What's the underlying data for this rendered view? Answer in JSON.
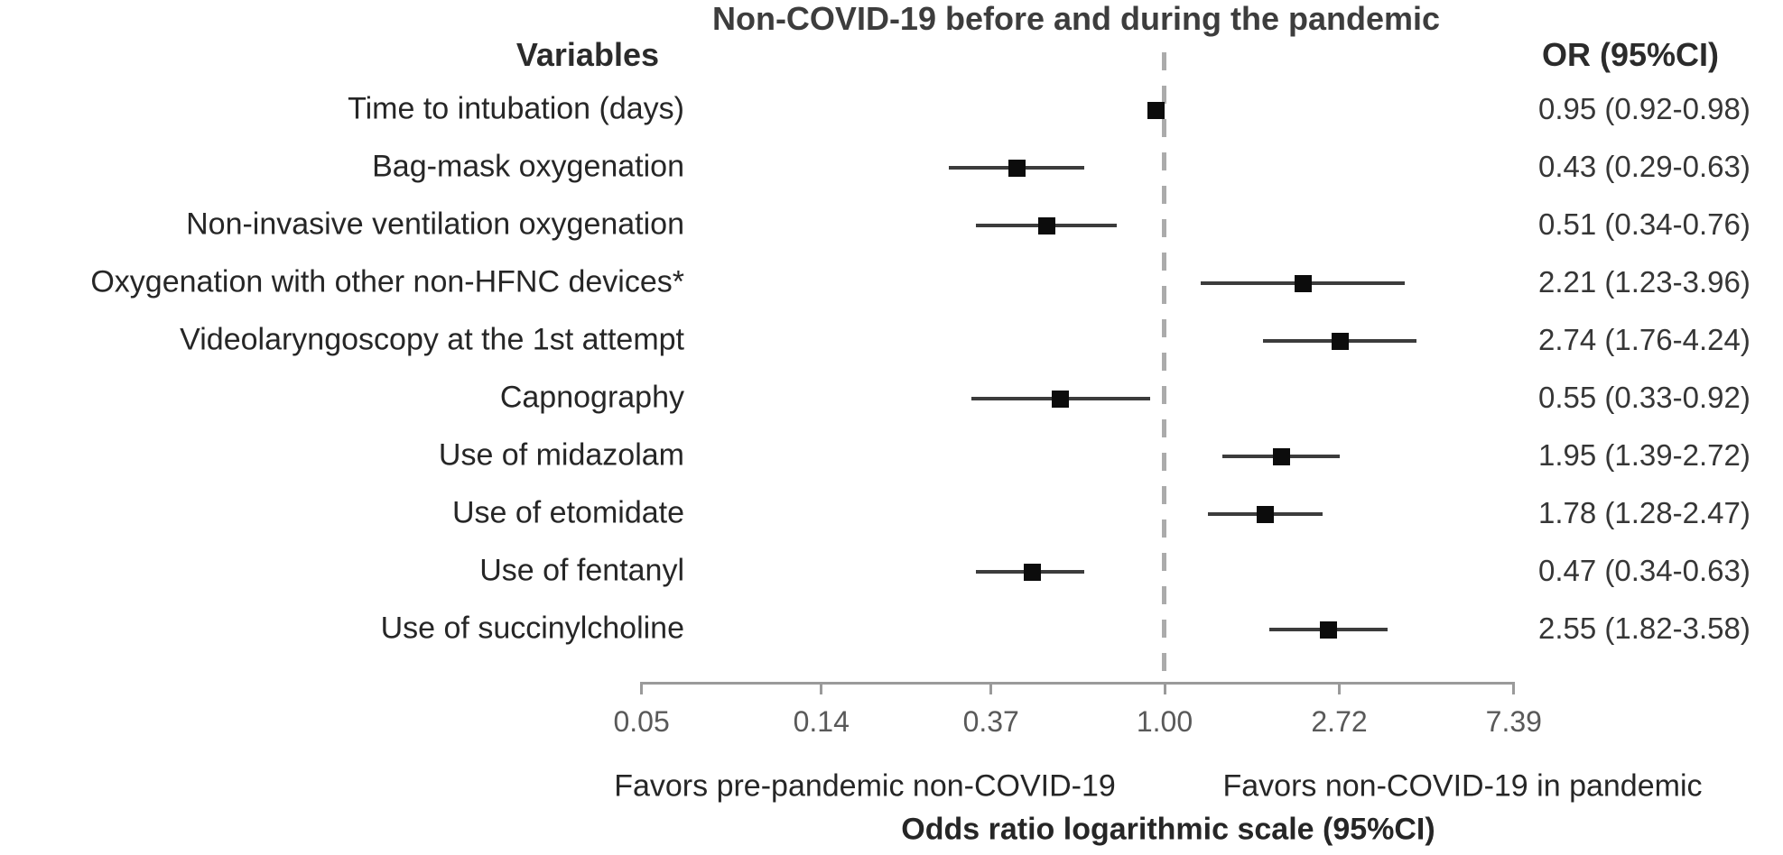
{
  "title": "Non-COVID-19 before and during the pandemic",
  "columns": {
    "variables_header": "Variables",
    "or_header": "OR (95%CI)"
  },
  "footer": {
    "favors_left": "Favors pre-pandemic non-COVID-19",
    "favors_right": "Favors non-COVID-19 in pandemic",
    "xlabel": "Odds ratio logarithmic scale (95%CI)"
  },
  "colors": {
    "title_text": "#3d3d3d",
    "header_text": "#2b2b2b",
    "label_text": "#262626",
    "value_text": "#363636",
    "tick_text": "#595959",
    "axis": "#9a9a9a",
    "reference_line": "#ababab",
    "whisker": "#3c3c3c",
    "marker": "#0c0c0c"
  },
  "chart_data": {
    "type": "scatter",
    "subtype": "forest-plot",
    "x_scale": "log",
    "xlim": [
      0.05,
      7.39
    ],
    "x_ticks": [
      0.05,
      0.14,
      0.37,
      1.0,
      2.72,
      7.39
    ],
    "x_tick_labels": [
      "0.05",
      "0.14",
      "0.37",
      "1.00",
      "2.72",
      "7.39"
    ],
    "reference_value": 1.0,
    "grid": "off",
    "rows": [
      {
        "label": "Time to intubation (days)",
        "or": 0.95,
        "ci_low": 0.92,
        "ci_high": 0.98,
        "or_text": "0.95 (0.92-0.98)"
      },
      {
        "label": "Bag-mask oxygenation",
        "or": 0.43,
        "ci_low": 0.29,
        "ci_high": 0.63,
        "or_text": "0.43 (0.29-0.63)"
      },
      {
        "label": "Non-invasive ventilation oxygenation",
        "or": 0.51,
        "ci_low": 0.34,
        "ci_high": 0.76,
        "or_text": "0.51 (0.34-0.76)"
      },
      {
        "label": "Oxygenation with other non-HFNC devices*",
        "or": 2.21,
        "ci_low": 1.23,
        "ci_high": 3.96,
        "or_text": "2.21 (1.23-3.96)"
      },
      {
        "label": "Videolaryngoscopy at the 1st attempt",
        "or": 2.74,
        "ci_low": 1.76,
        "ci_high": 4.24,
        "or_text": "2.74 (1.76-4.24)"
      },
      {
        "label": "Capnography",
        "or": 0.55,
        "ci_low": 0.33,
        "ci_high": 0.92,
        "or_text": "0.55 (0.33-0.92)"
      },
      {
        "label": "Use of midazolam",
        "or": 1.95,
        "ci_low": 1.39,
        "ci_high": 2.72,
        "or_text": "1.95 (1.39-2.72)"
      },
      {
        "label": "Use of etomidate",
        "or": 1.78,
        "ci_low": 1.28,
        "ci_high": 2.47,
        "or_text": "1.78 (1.28-2.47)"
      },
      {
        "label": "Use of fentanyl",
        "or": 0.47,
        "ci_low": 0.34,
        "ci_high": 0.63,
        "or_text": "0.47 (0.34-0.63)"
      },
      {
        "label": "Use of succinylcholine",
        "or": 2.55,
        "ci_low": 1.82,
        "ci_high": 3.58,
        "or_text": "2.55 (1.82-3.58)"
      }
    ]
  }
}
